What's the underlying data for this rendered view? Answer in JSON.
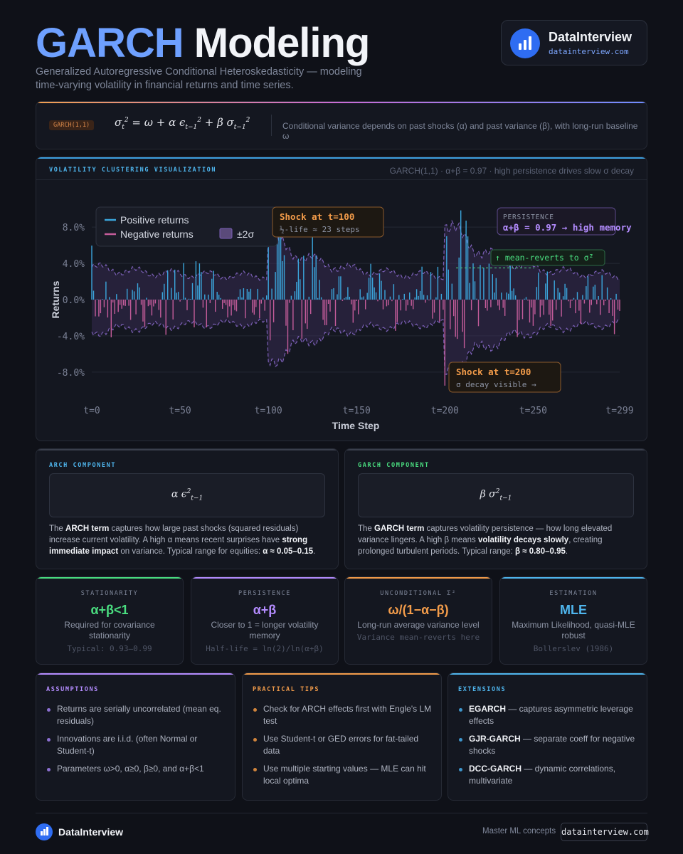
{
  "header": {
    "title_part1": "GARCH",
    "title_part2": "Modeling",
    "subtitle": "Generalized Autoregressive Conditional Heteroskedasticity — modeling time-varying volatility in financial returns and time series."
  },
  "brand": {
    "name": "DataInterview",
    "url": "datainterview.com",
    "icon": "bar-chart-icon"
  },
  "formula_bar": {
    "tag": "GARCH(1,1)",
    "description": "Conditional variance depends on past shocks (α) and past variance (β), with long-run baseline ω"
  },
  "chart_panel": {
    "label": "VOLATILITY CLUSTERING VISUALIZATION",
    "note": "GARCH(1,1) · α+β = 0.97 · high persistence drives slow σ decay"
  },
  "chart_data": {
    "type": "bar",
    "xlabel": "Time Step",
    "ylabel": "Returns",
    "xlim": [
      0,
      299
    ],
    "ylim": [
      -0.11,
      0.11
    ],
    "x_ticks": [
      0,
      50,
      100,
      150,
      200,
      250,
      299
    ],
    "x_tick_labels": [
      "t=0",
      "t=50",
      "t=100",
      "t=150",
      "t=200",
      "t=250",
      "t=299"
    ],
    "y_ticks": [
      0.08,
      0.04,
      0.0,
      -0.04,
      -0.08
    ],
    "y_tick_labels": [
      "8.0%",
      "4.0%",
      "0.0%",
      "-4.0%",
      "-8.0%"
    ],
    "legend": {
      "placement": "top-left",
      "entries": [
        {
          "label": "Positive returns",
          "color": "#3ba6dc"
        },
        {
          "label": "Negative returns",
          "color": "#c45c9a"
        },
        {
          "label": "±2σ",
          "color": "#5a4a7a"
        }
      ]
    },
    "series": [
      {
        "name": "Positive returns",
        "color": "#3ba6dc"
      },
      {
        "name": "Negative returns",
        "color": "#c45c9a"
      },
      {
        "name": "±2σ",
        "color": "#7a5fb5"
      }
    ],
    "shocks": [
      100,
      200
    ],
    "sigma_baseline": 0.012,
    "band_2sigma_samples": [
      {
        "x": 0,
        "y": 0.034
      },
      {
        "x": 20,
        "y": 0.031
      },
      {
        "x": 40,
        "y": 0.028
      },
      {
        "x": 60,
        "y": 0.026
      },
      {
        "x": 80,
        "y": 0.025
      },
      {
        "x": 99,
        "y": 0.024
      },
      {
        "x": 100,
        "y": 0.065
      },
      {
        "x": 120,
        "y": 0.047
      },
      {
        "x": 150,
        "y": 0.036
      },
      {
        "x": 180,
        "y": 0.03
      },
      {
        "x": 199,
        "y": 0.027
      },
      {
        "x": 200,
        "y": 0.08
      },
      {
        "x": 220,
        "y": 0.056
      },
      {
        "x": 250,
        "y": 0.04
      },
      {
        "x": 299,
        "y": 0.03
      }
    ],
    "long_run_level": 0.035,
    "annotations": [
      {
        "title": "Shock at t=100",
        "text": "½-life ≈ 23 steps",
        "x": 100
      },
      {
        "title": "Shock at t=200",
        "text": "σ decay visible →",
        "x": 200
      },
      {
        "title": "PERSISTENCE",
        "text": "α+β = 0.97 → high memory"
      },
      {
        "text": "↑ mean-reverts to σ̄²"
      }
    ]
  },
  "arch_card": {
    "label": "ARCH COMPONENT",
    "text_pre": "The ",
    "bold1": "ARCH term",
    "text_mid1": " captures how large past shocks (squared residuals) increase current volatility. A high α means recent surprises have ",
    "bold2": "strong immediate impact",
    "text_mid2": " on variance. Typical range for equities: ",
    "bold3": "α ≈ 0.05–0.15",
    "text_end": "."
  },
  "garch_card": {
    "label": "GARCH COMPONENT",
    "text_pre": "The ",
    "bold1": "GARCH term",
    "text_mid1": " captures volatility persistence — how long elevated variance lingers. A high β means ",
    "bold2": "volatility decays slowly",
    "text_mid2": ", creating prolonged turbulent periods. Typical range: ",
    "bold3": "β ≈ 0.80–0.95",
    "text_end": "."
  },
  "stats": [
    {
      "label": "STATIONARITY",
      "value": "α+β<1",
      "desc": "Required for covariance stationarity",
      "note": "Typical: 0.93–0.99",
      "color": "#4ade80",
      "accent": "#4ade80"
    },
    {
      "label": "PERSISTENCE",
      "value": "α+β",
      "desc": "Closer to 1 = longer volatility memory",
      "note": "Half-life = ln(2)/ln(α+β)",
      "color": "#b48cff",
      "accent": "#b48cff"
    },
    {
      "label": "UNCONDITIONAL Σ²",
      "value": "ω/(1−α−β)",
      "desc": "Long-run average variance level",
      "note": "Variance mean-reverts here",
      "color": "#f39c4a",
      "accent": "#f39c4a"
    },
    {
      "label": "ESTIMATION",
      "value": "MLE",
      "desc": "Maximum Likelihood, quasi-MLE robust",
      "note": "Bollerslev (1986)",
      "color": "#4fb6ee",
      "accent": "#4fb6ee"
    }
  ],
  "assumptions": {
    "label": "ASSUMPTIONS",
    "items": [
      "Returns are serially uncorrelated (mean eq. residuals)",
      "Innovations are i.i.d. (often Normal or Student-t)",
      "Parameters ω>0, α≥0, β≥0, and α+β<1"
    ]
  },
  "tips": {
    "label": "PRACTICAL TIPS",
    "items": [
      "Check for ARCH effects first with Engle's LM test",
      "Use Student-t or GED errors for fat-tailed data",
      "Use multiple starting values — MLE can hit local optima"
    ]
  },
  "extensions": {
    "label": "EXTENSIONS",
    "items": [
      {
        "name": "EGARCH",
        "text": " — captures asymmetric leverage effects"
      },
      {
        "name": "GJR-GARCH",
        "text": " — separate coeff for negative shocks"
      },
      {
        "name": "DCC-GARCH",
        "text": " — dynamic correlations, multivariate"
      }
    ]
  },
  "footer": {
    "brand": "DataInterview",
    "tagline": "Master ML concepts",
    "url": "datainterview.com"
  }
}
